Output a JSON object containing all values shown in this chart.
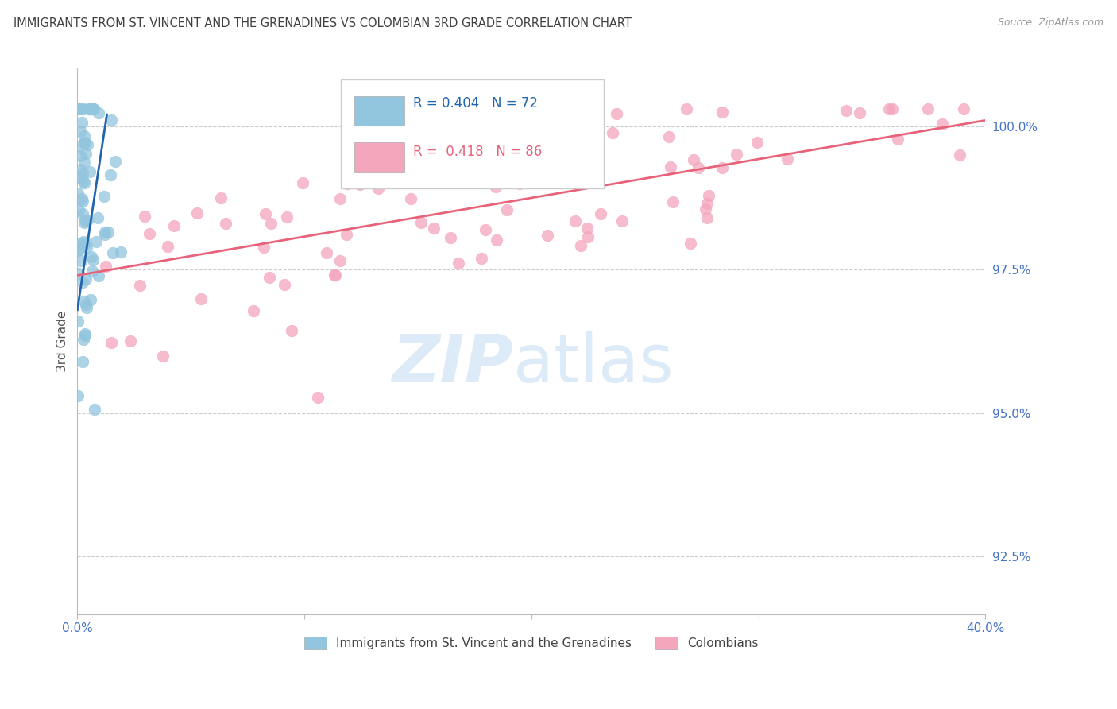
{
  "title": "IMMIGRANTS FROM ST. VINCENT AND THE GRENADINES VS COLOMBIAN 3RD GRADE CORRELATION CHART",
  "source": "Source: ZipAtlas.com",
  "ylabel": "3rd Grade",
  "yticks": [
    92.5,
    95.0,
    97.5,
    100.0
  ],
  "ytick_labels": [
    "92.5%",
    "95.0%",
    "97.5%",
    "100.0%"
  ],
  "xmin": 0.0,
  "xmax": 0.4,
  "ymin": 91.5,
  "ymax": 101.0,
  "blue_R": 0.404,
  "blue_N": 72,
  "pink_R": 0.418,
  "pink_N": 86,
  "legend_blue": "Immigrants from St. Vincent and the Grenadines",
  "legend_pink": "Colombians",
  "blue_color": "#92c5de",
  "pink_color": "#f4a6bd",
  "blue_line_color": "#2166ac",
  "pink_line_color": "#e8637a",
  "watermark_zip": "ZIP",
  "watermark_atlas": "atlas",
  "watermark_color": "#ddeaf7",
  "background_color": "#ffffff",
  "grid_color": "#cccccc",
  "title_color": "#404040",
  "tick_label_color": "#4472c4",
  "blue_line_x0": 0.0,
  "blue_line_y0": 96.8,
  "blue_line_x1": 0.013,
  "blue_line_y1": 100.2,
  "pink_line_x0": 0.0,
  "pink_line_y0": 97.4,
  "pink_line_x1": 0.4,
  "pink_line_y1": 100.1
}
